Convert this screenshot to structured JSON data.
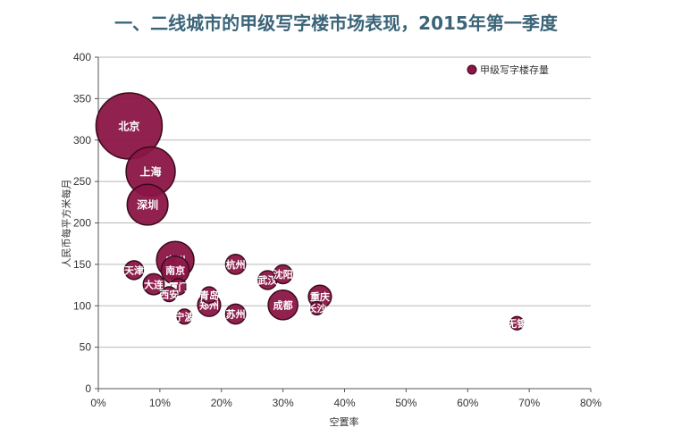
{
  "chart_data": {
    "type": "scatter",
    "title": "一、二线城市的甲级写字楼市场表现，2015年第一季度",
    "xlabel": "空置率",
    "ylabel": "人民币每平方米每月",
    "x_unit": "%",
    "xlim": [
      0,
      80
    ],
    "ylim": [
      0,
      400
    ],
    "x_ticks": [
      "0%",
      "10%",
      "20%",
      "30%",
      "40%",
      "50%",
      "60%",
      "70%",
      "80%"
    ],
    "y_ticks": [
      "0",
      "50",
      "100",
      "150",
      "200",
      "250",
      "300",
      "350",
      "400"
    ],
    "grid": "horizontal",
    "legend_position": "top-right",
    "colors": {
      "bubble_fill": "#8b1546",
      "bubble_stroke": "#3a0a1c",
      "title": "#3b6478",
      "grid": "#b8b8b8"
    },
    "series": [
      {
        "name": "甲级写字楼存量",
        "points": [
          {
            "label": "北京",
            "x": 5,
            "y": 317,
            "size": 100
          },
          {
            "label": "上海",
            "x": 8.5,
            "y": 262,
            "size": 55
          },
          {
            "label": "深圳",
            "x": 8,
            "y": 222,
            "size": 38
          },
          {
            "label": "广州",
            "x": 12.5,
            "y": 155,
            "size": 32
          },
          {
            "label": "南京",
            "x": 12.5,
            "y": 143,
            "size": 18
          },
          {
            "label": "天津",
            "x": 5.8,
            "y": 143,
            "size": 8
          },
          {
            "label": "大连",
            "x": 9,
            "y": 126,
            "size": 10
          },
          {
            "label": "厦门",
            "x": 13,
            "y": 123,
            "size": 6
          },
          {
            "label": "西安",
            "x": 11.5,
            "y": 114,
            "size": 5
          },
          {
            "label": "青岛",
            "x": 18,
            "y": 113,
            "size": 6
          },
          {
            "label": "郑州",
            "x": 18,
            "y": 101,
            "size": 12
          },
          {
            "label": "宁波",
            "x": 14,
            "y": 87,
            "size": 5
          },
          {
            "label": "杭州",
            "x": 22.3,
            "y": 150,
            "size": 9
          },
          {
            "label": "苏州",
            "x": 22.3,
            "y": 90,
            "size": 9
          },
          {
            "label": "武汉",
            "x": 27.5,
            "y": 131,
            "size": 8
          },
          {
            "label": "沈阳",
            "x": 30,
            "y": 138,
            "size": 8
          },
          {
            "label": "成都",
            "x": 30,
            "y": 101,
            "size": 20
          },
          {
            "label": "重庆",
            "x": 36,
            "y": 111,
            "size": 12
          },
          {
            "label": "长沙",
            "x": 35.5,
            "y": 97,
            "size": 4
          },
          {
            "label": "无锡",
            "x": 68,
            "y": 79,
            "size": 4
          }
        ]
      }
    ]
  }
}
